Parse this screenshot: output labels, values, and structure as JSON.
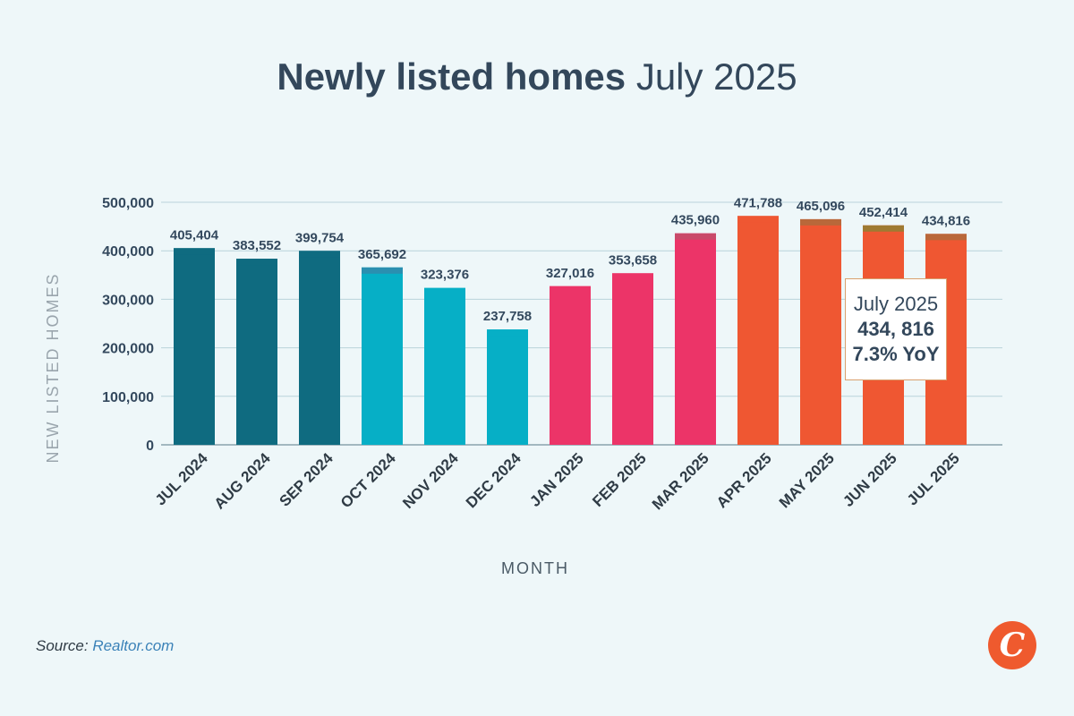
{
  "title": {
    "bold": "Newly listed homes",
    "light": "July 2025"
  },
  "source": {
    "label": "Source:",
    "link": "Realtor.com"
  },
  "logo": {
    "letter": "C",
    "color": "#ef5a2e"
  },
  "tooltip": {
    "line1": "July 2025",
    "line2": "434, 816",
    "line3": "7.3% YoY"
  },
  "chart_data": {
    "type": "bar",
    "xlabel": "MONTH",
    "ylabel": "NEW LISTED HOMES",
    "ylim": [
      0,
      500000
    ],
    "yticks": [
      0,
      100000,
      200000,
      300000,
      400000,
      500000
    ],
    "ytick_labels": [
      "0",
      "100,000",
      "200,000",
      "300,000",
      "400,000",
      "500,000"
    ],
    "grid": true,
    "categories": [
      "JUL 2024",
      "AUG 2024",
      "SEP 2024",
      "OCT 2024",
      "NOV 2024",
      "DEC 2024",
      "JAN 2025",
      "FEB 2025",
      "MAR 2025",
      "APR 2025",
      "MAY 2025",
      "JUN 2025",
      "JUL 2025"
    ],
    "values": [
      405404,
      383552,
      399754,
      365692,
      323376,
      237758,
      327016,
      353658,
      435960,
      471788,
      465096,
      452414,
      434816
    ],
    "value_labels": [
      "405,404",
      "383,552",
      "399,754",
      "365,692",
      "323,376",
      "237,758",
      "327,016",
      "353,658",
      "435,960",
      "471,788",
      "465,096",
      "452,414",
      "434,816"
    ],
    "bar_colors": [
      "#0f6b80",
      "#0f6b80",
      "#0f6b80",
      "#06afc6",
      "#06afc6",
      "#06afc6",
      "#ec3468",
      "#ec3468",
      "#ec3468",
      "#ef5732",
      "#ef5732",
      "#ef5732",
      "#ef5732"
    ],
    "cap_colors": [
      "#0f6b80",
      "#0f6b80",
      "#0f6b80",
      "#2a8fb0",
      "#06afc6",
      "#06afc6",
      "#ec3468",
      "#ec3468",
      "#c94a6a",
      "#ef5732",
      "#b9683a",
      "#9f7a32",
      "#b9683a"
    ]
  }
}
